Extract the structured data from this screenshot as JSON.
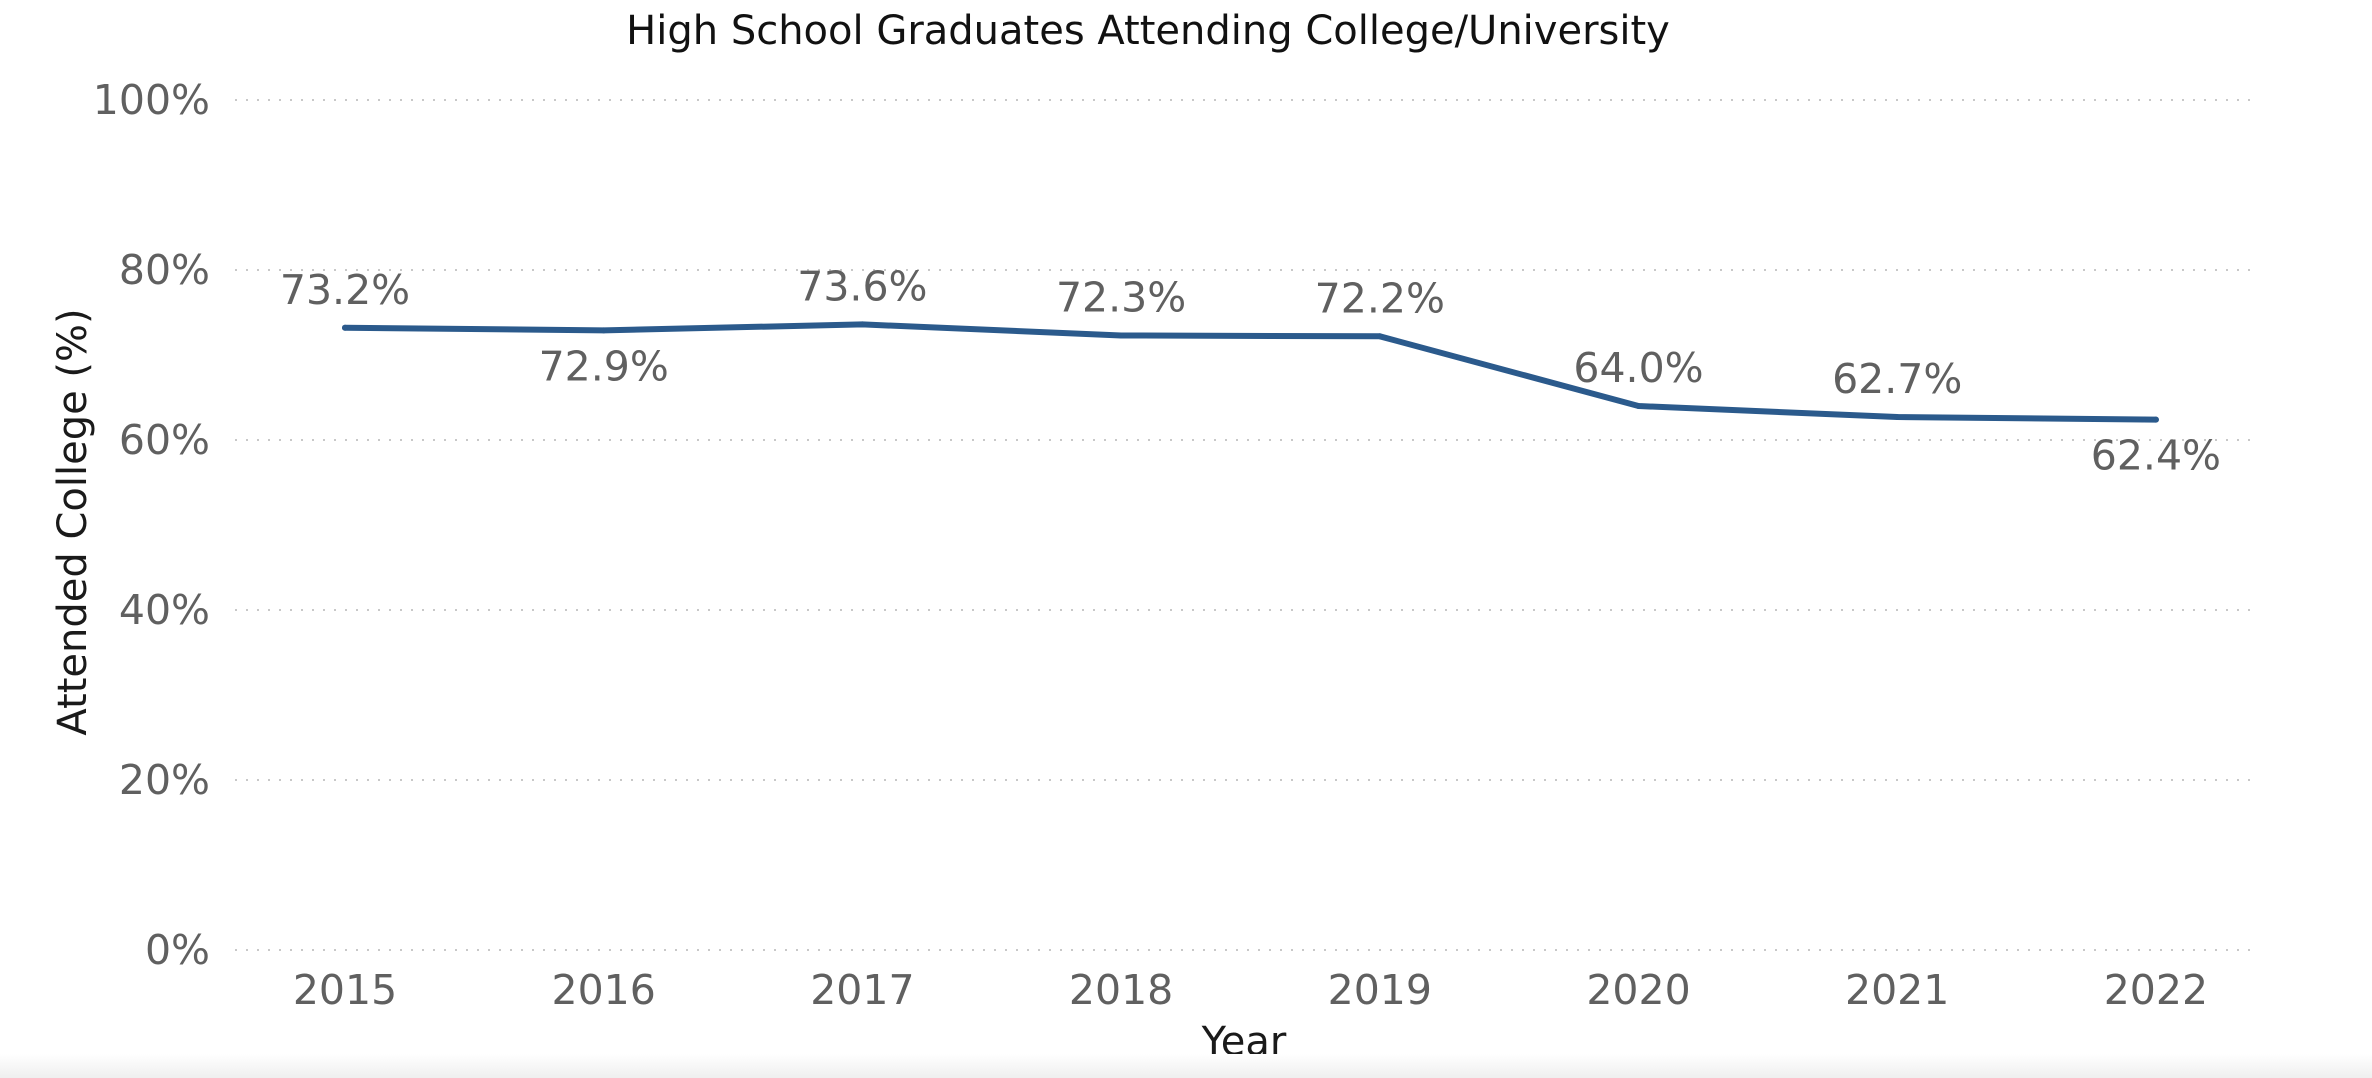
{
  "chart_data": {
    "type": "line",
    "title": "High School Graduates Attending College/University",
    "xlabel": "Year",
    "ylabel": "Attended College (%)",
    "categories": [
      "2015",
      "2016",
      "2017",
      "2018",
      "2019",
      "2020",
      "2021",
      "2022"
    ],
    "values": [
      73.2,
      72.9,
      73.6,
      72.3,
      72.2,
      64.0,
      62.7,
      62.4
    ],
    "data_labels": [
      "73.2%",
      "72.9%",
      "73.6%",
      "72.3%",
      "72.2%",
      "64.0%",
      "62.7%",
      "62.4%"
    ],
    "label_positions": [
      "above",
      "below",
      "above",
      "above",
      "above",
      "above",
      "above",
      "below"
    ],
    "ylim": [
      0,
      100
    ],
    "yticks": [
      0,
      20,
      40,
      60,
      80,
      100
    ],
    "ytick_labels": [
      "0%",
      "20%",
      "40%",
      "60%",
      "80%",
      "100%"
    ],
    "grid": true,
    "legend": "none",
    "colors": {
      "line": "#2b5a8c",
      "grid": "#c8c8c8",
      "labels": "#606060"
    }
  }
}
